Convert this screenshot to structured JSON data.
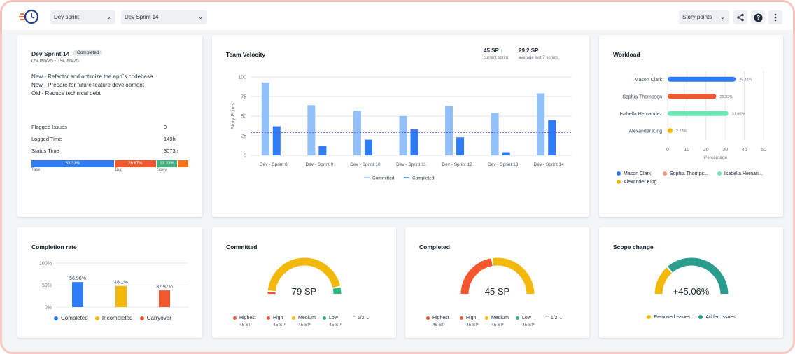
{
  "header": {
    "project_select": "Dev sprint",
    "sprint_select": "Dev Sprint 14",
    "metric_select": "Story points"
  },
  "sprint_card": {
    "title": "Dev Sprint 14",
    "badge": "Completed",
    "dates": "05/Jan/25 - 19/Jan/25",
    "goals": [
      "New - Refactor and optimize the app`s codebase",
      "New - Prepare for future feature development",
      "Old - Reduce technical debt"
    ],
    "stats": [
      {
        "label": "Flagged Issues",
        "value": "0"
      },
      {
        "label": "Logged Time",
        "value": "149h"
      },
      {
        "label": "Status Time",
        "value": "3073h"
      }
    ],
    "split": [
      {
        "label": "Task",
        "pct_text": "53.33%",
        "value": 53.33,
        "color": "#2f7cf6"
      },
      {
        "label": "Bug",
        "pct_text": "26.67%",
        "value": 26.67,
        "color": "#f4572d"
      },
      {
        "label": "Story",
        "pct_text": "13.33%",
        "value": 13.33,
        "color": "#3fb27f"
      },
      {
        "label": "",
        "pct_text": "",
        "value": 6.67,
        "color": "#f97316"
      }
    ]
  },
  "velocity": {
    "title": "Team Velocity",
    "current_value": "45 SP",
    "current_arrow": "↑",
    "current_label": "current sprint",
    "avg_value": "29.2 SP",
    "avg_label": "average last 7 sprints",
    "legend_committed": "Committed",
    "legend_completed": "Completed"
  },
  "workload": {
    "title": "Workload",
    "axis_label": "Percentage",
    "legend": [
      {
        "name": "Mason Clark",
        "color": "#2f7cf6"
      },
      {
        "name": "Sophia Thomps...",
        "color": "#f59e7b"
      },
      {
        "name": "Isabella Hernan...",
        "color": "#6ee7b7"
      },
      {
        "name": "Alexander King",
        "color": "#f2b90c"
      }
    ]
  },
  "completion": {
    "title": "Completion rate",
    "legend": [
      {
        "name": "Completed",
        "color": "#2f7cf6"
      },
      {
        "name": "Incompleted",
        "color": "#f2b90c"
      },
      {
        "name": "Carryover",
        "color": "#f4572d"
      }
    ]
  },
  "committed": {
    "title": "Committed",
    "value": "79 SP",
    "priorities": [
      {
        "name": "Highest",
        "sp": "45 SP",
        "color": "#e4572e"
      },
      {
        "name": "High",
        "sp": "45 SP",
        "color": "#f4572d"
      },
      {
        "name": "Medium",
        "sp": "45 SP",
        "color": "#f2b90c"
      },
      {
        "name": "Low",
        "sp": "45 SP",
        "color": "#2fb67c"
      }
    ],
    "pager": "1/2"
  },
  "completed": {
    "title": "Completed",
    "value": "45 SP",
    "priorities": [
      {
        "name": "Highest",
        "sp": "45 SP",
        "color": "#e4572e"
      },
      {
        "name": "High",
        "sp": "45 SP",
        "color": "#f4572d"
      },
      {
        "name": "Medium",
        "sp": "45 SP",
        "color": "#f2b90c"
      },
      {
        "name": "Low",
        "sp": "45 SP",
        "color": "#2fb67c"
      }
    ],
    "pager": "1/2"
  },
  "scope": {
    "title": "Scope change",
    "value": "+45.06%",
    "legend": [
      {
        "name": "Removed Issues",
        "color": "#f2b90c"
      },
      {
        "name": "Added Issues",
        "color": "#2a9d8f"
      }
    ]
  },
  "chart_data": [
    {
      "type": "bar",
      "title": "Team Velocity",
      "ylabel": "Story Points",
      "ylim": [
        0,
        100
      ],
      "yticks": [
        0,
        25,
        50,
        75,
        100
      ],
      "categories": [
        "Dev - Sprint 8",
        "Dev - Sprint 9",
        "Dev - Sprint 10",
        "Dev - Sprint 11",
        "Dev - Sprint 12",
        "Dev - Sprint 13",
        "Dev - Sprint 14"
      ],
      "series": [
        {
          "name": "Committed",
          "values": [
            93,
            64,
            57,
            50,
            63,
            54,
            79
          ],
          "color": "#93c0f8"
        },
        {
          "name": "Completed",
          "values": [
            37,
            12,
            20,
            33,
            23,
            4,
            45
          ],
          "color": "#2f7cf6"
        }
      ],
      "average": 29.2
    },
    {
      "type": "bar",
      "title": "Workload",
      "xlabel": "Percentage",
      "xlim": [
        0,
        50
      ],
      "xticks": [
        0,
        10,
        20,
        30,
        40,
        50
      ],
      "categories": [
        "Mason Clark",
        "Sophia Thompson",
        "Isabella Hernandez",
        "Alexander King"
      ],
      "series": [
        {
          "values": [
            35.44,
            25.32,
            31.65,
            2.53
          ]
        }
      ],
      "data_labels": [
        "35.44%",
        "25.32%",
        "31.65%",
        "2.53%"
      ],
      "colors": [
        "#2f7cf6",
        "#f4572d",
        "#6ee7b7",
        "#f2b90c"
      ]
    },
    {
      "type": "bar",
      "title": "Completion rate",
      "ylim": [
        0,
        100
      ],
      "yticks": [
        "0%",
        "50%",
        "100%"
      ],
      "categories": [
        "Completed",
        "Incompleted",
        "Carryover"
      ],
      "values": [
        56.96,
        48.1,
        37.97
      ],
      "data_labels": [
        "56.96%",
        "48.1%",
        "37.97%"
      ],
      "colors": [
        "#2f7cf6",
        "#f2b90c",
        "#f4572d"
      ]
    },
    {
      "type": "pie",
      "title": "Committed",
      "segments": [
        {
          "name": "Highest",
          "value": 3,
          "color": "#e4572e"
        },
        {
          "name": "Medium",
          "value": 90,
          "color": "#f2b90c"
        },
        {
          "name": "Low",
          "value": 7,
          "color": "#2fb67c"
        }
      ]
    },
    {
      "type": "pie",
      "title": "Completed",
      "segments": [
        {
          "name": "High",
          "value": 45,
          "color": "#f4572d"
        },
        {
          "name": "Medium",
          "value": 55,
          "color": "#f2b90c"
        }
      ]
    },
    {
      "type": "pie",
      "title": "Scope change",
      "segments": [
        {
          "name": "Removed Issues",
          "value": 27,
          "color": "#f2b90c"
        },
        {
          "name": "Added Issues",
          "value": 73,
          "color": "#2a9d8f"
        }
      ]
    }
  ]
}
